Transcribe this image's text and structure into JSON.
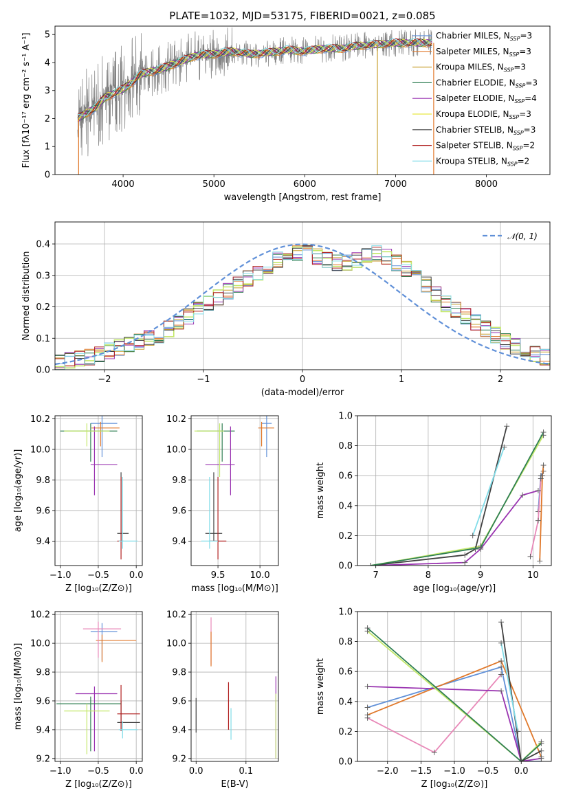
{
  "figure": {
    "title": "PLATE=1032, MJD=53175, FIBERID=0021, z=0.085"
  },
  "chart_data": [
    {
      "type": "line",
      "id": "spectrum",
      "title": "PLATE=1032, MJD=53175, FIBERID=0021, z=0.085",
      "xlabel": "wavelength [Angstrom, rest frame]",
      "ylabel": "Flux [fλ10⁻¹⁷ erg cm⁻² s⁻¹ A⁻¹]",
      "xlim": [
        3250,
        8700
      ],
      "ylim": [
        0,
        5.3
      ],
      "xticks": [
        4000,
        5000,
        6000,
        7000,
        8000
      ],
      "yticks": [
        0,
        1,
        2,
        3,
        4,
        5
      ],
      "grid": false,
      "legend_position": "top-right",
      "data_color": "#808080",
      "continuum": {
        "x": [
          3500,
          3600,
          3700,
          3800,
          3900,
          4000,
          4100,
          4200,
          4400,
          4600,
          4800,
          5000,
          5200,
          5400,
          5600,
          5800,
          6000,
          6200,
          6400,
          6600,
          6800,
          7000,
          7200,
          7400
        ],
        "y": [
          2.0,
          2.2,
          2.4,
          2.75,
          2.9,
          3.05,
          3.3,
          3.6,
          3.75,
          4.0,
          4.25,
          4.3,
          4.4,
          4.3,
          4.35,
          4.45,
          4.4,
          4.5,
          4.5,
          4.6,
          4.65,
          4.7,
          4.7,
          4.7
        ]
      },
      "legend": [
        {
          "label": "Chabrier MILES, N",
          "sub": "SSP",
          "suffix": "=3",
          "color": "#6090d8"
        },
        {
          "label": "Salpeter MILES, N",
          "sub": "SSP",
          "suffix": "=3",
          "color": "#e0782a"
        },
        {
          "label": "Kroupa MILES, N",
          "sub": "SSP",
          "suffix": "=3",
          "color": "#c8a030"
        },
        {
          "label": "Chabrier ELODIE, N",
          "sub": "SSP",
          "suffix": "=3",
          "color": "#2f7f52"
        },
        {
          "label": "Salpeter ELODIE, N",
          "sub": "SSP",
          "suffix": "=4",
          "color": "#9932b0"
        },
        {
          "label": "Kroupa ELODIE, N",
          "sub": "SSP",
          "suffix": "=3",
          "color": "#e8e840"
        },
        {
          "label": "Chabrier STELIB, N",
          "sub": "SSP",
          "suffix": "=3",
          "color": "#404040"
        },
        {
          "label": "Salpeter STELIB, N",
          "sub": "SSP",
          "suffix": "=2",
          "color": "#b02020"
        },
        {
          "label": "Kroupa STELIB, N",
          "sub": "SSP",
          "suffix": "=2",
          "color": "#80dce8"
        }
      ]
    },
    {
      "type": "step",
      "id": "residuals",
      "xlabel": "(data-model)/error",
      "ylabel": "Normed distribution",
      "xlim": [
        -2.5,
        2.5
      ],
      "ylim": [
        0,
        0.47
      ],
      "xticks": [
        -2,
        -1,
        0,
        1,
        2
      ],
      "yticks": [
        0.0,
        0.1,
        0.2,
        0.3,
        0.4
      ],
      "grid": true,
      "legend_position": "top-right",
      "reference_label": "𝒩(0, 1)",
      "reference_color": "#6090d8",
      "bin_edges_start": -2.5,
      "bin_width": 0.1,
      "base_hist": [
        0.025,
        0.03,
        0.035,
        0.04,
        0.05,
        0.06,
        0.07,
        0.08,
        0.09,
        0.1,
        0.11,
        0.13,
        0.15,
        0.17,
        0.19,
        0.21,
        0.23,
        0.25,
        0.27,
        0.29,
        0.31,
        0.33,
        0.35,
        0.36,
        0.37,
        0.37,
        0.36,
        0.35,
        0.34,
        0.34,
        0.35,
        0.36,
        0.37,
        0.36,
        0.34,
        0.32,
        0.3,
        0.27,
        0.24,
        0.21,
        0.19,
        0.17,
        0.15,
        0.13,
        0.11,
        0.09,
        0.075,
        0.06,
        0.05,
        0.04
      ]
    },
    {
      "type": "errorbar",
      "id": "age_vs_Z",
      "xlabel": "Z [log₁₀(Z/Z⊙)]",
      "ylabel": "age  [log₁₀(age/yr)]",
      "xlim": [
        -1.07,
        0.08
      ],
      "ylim": [
        9.24,
        10.22
      ],
      "xticks": [
        -1.0,
        -0.5,
        0.0
      ],
      "yticks": [
        9.4,
        9.6,
        9.8,
        10.0,
        10.2
      ],
      "grid": true,
      "points": [
        {
          "x": -0.45,
          "y": 10.17,
          "xerr": [
            0.15,
            0.2
          ],
          "yerr": [
            0.22,
            0.05
          ],
          "color": "#6090d8"
        },
        {
          "x": -0.47,
          "y": 10.14,
          "xerr": [
            0.12,
            0.25
          ],
          "yerr": [
            0.12,
            0.04
          ],
          "color": "#e0782a"
        },
        {
          "x": -0.6,
          "y": 10.12,
          "xerr": [
            0.4,
            0.35
          ],
          "yerr": [
            0.2,
            0.05
          ],
          "color": "#2f7f52"
        },
        {
          "x": -0.55,
          "y": 9.9,
          "xerr": [
            0.05,
            0.3
          ],
          "yerr": [
            0.2,
            0.25
          ],
          "color": "#9932b0"
        },
        {
          "x": -0.65,
          "y": 10.12,
          "xerr": [
            0.3,
            0.3
          ],
          "yerr": [
            0.1,
            0.05
          ],
          "color": "#c4e86a"
        },
        {
          "x": -0.2,
          "y": 9.45,
          "xerr": [
            0.05,
            0.1
          ],
          "yerr": [
            0.05,
            0.4
          ],
          "color": "#404040"
        },
        {
          "x": -0.2,
          "y": 9.4,
          "xerr": [
            0.05,
            0.03
          ],
          "yerr": [
            0.12,
            0.42
          ],
          "color": "#b02020"
        },
        {
          "x": -0.18,
          "y": 9.4,
          "xerr": [
            0.05,
            0.2
          ],
          "yerr": [
            0.05,
            0.42
          ],
          "color": "#80dce8"
        }
      ]
    },
    {
      "type": "errorbar",
      "id": "age_vs_mass",
      "xlabel": "mass [log₁₀(M/M⊙)]",
      "ylabel": "",
      "xlim": [
        9.18,
        10.22
      ],
      "ylim": [
        9.24,
        10.22
      ],
      "xticks": [
        9.5,
        10.0
      ],
      "yticks": [
        9.4,
        9.6,
        9.8,
        10.0,
        10.2
      ],
      "grid": true,
      "points": [
        {
          "x": 10.08,
          "y": 10.17,
          "xerr": [
            0.06,
            0.06
          ],
          "yerr": [
            0.22,
            0.05
          ],
          "color": "#6090d8"
        },
        {
          "x": 10.02,
          "y": 10.14,
          "xerr": [
            0.04,
            0.15
          ],
          "yerr": [
            0.12,
            0.04
          ],
          "color": "#e0782a"
        },
        {
          "x": 9.55,
          "y": 10.12,
          "xerr": [
            0.3,
            0.15
          ],
          "yerr": [
            0.2,
            0.05
          ],
          "color": "#2f7f52"
        },
        {
          "x": 9.65,
          "y": 9.9,
          "xerr": [
            0.3,
            0.05
          ],
          "yerr": [
            0.2,
            0.25
          ],
          "color": "#9932b0"
        },
        {
          "x": 9.52,
          "y": 10.12,
          "xerr": [
            0.3,
            0.05
          ],
          "yerr": [
            0.3,
            0.05
          ],
          "color": "#c4e86a"
        },
        {
          "x": 9.45,
          "y": 9.45,
          "xerr": [
            0.1,
            0.1
          ],
          "yerr": [
            0.05,
            0.4
          ],
          "color": "#404040"
        },
        {
          "x": 9.5,
          "y": 9.4,
          "xerr": [
            0.1,
            0.1
          ],
          "yerr": [
            0.12,
            0.42
          ],
          "color": "#b02020"
        },
        {
          "x": 9.4,
          "y": 9.4,
          "xerr": [
            0.1,
            0.1
          ],
          "yerr": [
            0.05,
            0.42
          ],
          "color": "#80dce8"
        }
      ]
    },
    {
      "type": "line",
      "id": "weight_vs_age",
      "xlabel": "age  [log₁₀(age/yr)]",
      "ylabel": "mass weight",
      "xlim": [
        6.65,
        10.35
      ],
      "ylim": [
        0,
        1.0
      ],
      "xticks": [
        7,
        8,
        9,
        10
      ],
      "yticks": [
        0.0,
        0.2,
        0.4,
        0.6,
        0.8,
        1.0
      ],
      "grid": true,
      "series": [
        {
          "color": "#6090d8",
          "x": [
            10.1,
            10.15,
            10.2
          ],
          "y": [
            0.36,
            0.6,
            0.63
          ]
        },
        {
          "color": "#e0782a",
          "x": [
            10.13,
            10.18,
            10.2
          ],
          "y": [
            0.03,
            0.6,
            0.67
          ]
        },
        {
          "color": "#e888b8",
          "x": [
            9.95,
            10.1,
            10.15
          ],
          "y": [
            0.06,
            0.3,
            0.58
          ]
        },
        {
          "color": "#9932b0",
          "x": [
            6.9,
            8.7,
            9.0,
            9.8,
            10.1
          ],
          "y": [
            0.0,
            0.02,
            0.11,
            0.47,
            0.5
          ]
        },
        {
          "color": "#c4e86a",
          "x": [
            6.9,
            9.0,
            10.2
          ],
          "y": [
            0.0,
            0.13,
            0.87
          ]
        },
        {
          "color": "#404040",
          "x": [
            6.9,
            8.7,
            8.9,
            9.5
          ],
          "y": [
            0.0,
            0.07,
            0.11,
            0.93
          ]
        },
        {
          "color": "#2f7f52",
          "x": [
            6.9,
            9.0,
            10.2
          ],
          "y": [
            0.0,
            0.12,
            0.89
          ]
        },
        {
          "color": "#80dce8",
          "x": [
            8.85,
            9.45
          ],
          "y": [
            0.2,
            0.79
          ]
        }
      ]
    },
    {
      "type": "errorbar",
      "id": "mass_vs_Z",
      "xlabel": "Z [log₁₀(Z/Z⊙)]",
      "ylabel": "mass [log₁₀(M/M⊙)]",
      "xlim": [
        -1.07,
        0.08
      ],
      "ylim": [
        9.18,
        10.22
      ],
      "xticks": [
        -1.0,
        -0.5,
        0.0
      ],
      "yticks": [
        9.2,
        9.4,
        9.6,
        9.8,
        10.0,
        10.2
      ],
      "grid": true,
      "points": [
        {
          "x": -0.45,
          "y": 10.08,
          "xerr": [
            0.15,
            0.2
          ],
          "yerr": [
            0.2,
            0.06
          ],
          "color": "#6090d8"
        },
        {
          "x": -0.45,
          "y": 10.02,
          "xerr": [
            0.08,
            0.45
          ],
          "yerr": [
            0.15,
            0.04
          ],
          "color": "#e0782a"
        },
        {
          "x": -0.5,
          "y": 10.1,
          "xerr": [
            0.2,
            0.3
          ],
          "yerr": [
            0.2,
            0.05
          ],
          "color": "#e888b8"
        },
        {
          "x": -0.55,
          "y": 9.65,
          "xerr": [
            0.25,
            0.3
          ],
          "yerr": [
            0.4,
            0.05
          ],
          "color": "#9932b0"
        },
        {
          "x": -0.6,
          "y": 9.58,
          "xerr": [
            0.45,
            0.4
          ],
          "yerr": [
            0.33,
            0.05
          ],
          "color": "#2f7f52"
        },
        {
          "x": -0.65,
          "y": 9.53,
          "xerr": [
            0.3,
            0.3
          ],
          "yerr": [
            0.3,
            0.05
          ],
          "color": "#c4e86a"
        },
        {
          "x": -0.2,
          "y": 9.45,
          "xerr": [
            0.05,
            0.25
          ],
          "yerr": [
            0.05,
            0.15
          ],
          "color": "#404040"
        },
        {
          "x": -0.2,
          "y": 9.51,
          "xerr": [
            0.05,
            0.25
          ],
          "yerr": [
            0.12,
            0.2
          ],
          "color": "#b02020"
        },
        {
          "x": -0.18,
          "y": 9.4,
          "xerr": [
            0.05,
            0.2
          ],
          "yerr": [
            0.06,
            0.06
          ],
          "color": "#80dce8"
        }
      ]
    },
    {
      "type": "errorbar",
      "id": "mass_vs_EBV",
      "xlabel": "E(B-V)",
      "ylabel": "",
      "xlim": [
        -0.01,
        0.165
      ],
      "ylim": [
        9.18,
        10.22
      ],
      "xticks": [
        0.0,
        0.1
      ],
      "yticks": [
        9.2,
        9.4,
        9.6,
        9.8,
        10.0,
        10.2
      ],
      "grid": true,
      "points": [
        {
          "x": 0.03,
          "y": 10.1,
          "xerr": [
            0,
            0
          ],
          "yerr": [
            0.25,
            0.08
          ],
          "color": "#e888b8"
        },
        {
          "x": 0.03,
          "y": 10.02,
          "xerr": [
            0,
            0
          ],
          "yerr": [
            0.18,
            0.06
          ],
          "color": "#e0782a"
        },
        {
          "x": 0.0,
          "y": 9.5,
          "xerr": [
            0,
            0
          ],
          "yerr": [
            0.12,
            0.12
          ],
          "color": "#404040"
        },
        {
          "x": 0.065,
          "y": 9.55,
          "xerr": [
            0,
            0
          ],
          "yerr": [
            0.15,
            0.18
          ],
          "color": "#b02020"
        },
        {
          "x": 0.07,
          "y": 9.45,
          "xerr": [
            0,
            0
          ],
          "yerr": [
            0.12,
            0.1
          ],
          "color": "#80dce8"
        },
        {
          "x": 0.16,
          "y": 9.6,
          "xerr": [
            0,
            0
          ],
          "yerr": [
            0.4,
            0.17
          ],
          "color": "#9932b0"
        },
        {
          "x": 0.16,
          "y": 9.45,
          "xerr": [
            0,
            0
          ],
          "yerr": [
            0.25,
            0.2
          ],
          "color": "#c4e86a"
        }
      ]
    },
    {
      "type": "line",
      "id": "weight_vs_Z",
      "xlabel": "Z [log₁₀(Z/Z⊙)]",
      "ylabel": "mass weight",
      "xlim": [
        -2.45,
        0.45
      ],
      "ylim": [
        0,
        1.0
      ],
      "xticks": [
        -2.0,
        -1.5,
        -1.0,
        -0.5,
        0.0
      ],
      "yticks": [
        0.0,
        0.2,
        0.4,
        0.6,
        0.8,
        1.0
      ],
      "grid": true,
      "series": [
        {
          "color": "#6090d8",
          "x": [
            -2.3,
            -0.3,
            0.0,
            0.3
          ],
          "y": [
            0.36,
            0.63,
            0.0,
            0.0
          ]
        },
        {
          "color": "#e0782a",
          "x": [
            -2.3,
            -0.3,
            0.3
          ],
          "y": [
            0.31,
            0.67,
            0.03
          ]
        },
        {
          "color": "#e888b8",
          "x": [
            -2.3,
            -1.3,
            -0.3
          ],
          "y": [
            0.29,
            0.06,
            0.58
          ]
        },
        {
          "color": "#9932b0",
          "x": [
            -2.3,
            -0.3,
            0.0,
            0.3
          ],
          "y": [
            0.5,
            0.47,
            0.0,
            0.02
          ]
        },
        {
          "color": "#c4e86a",
          "x": [
            -2.3,
            0.0,
            0.3
          ],
          "y": [
            0.87,
            0.0,
            0.13
          ]
        },
        {
          "color": "#2f7f52",
          "x": [
            -2.3,
            0.0,
            0.3
          ],
          "y": [
            0.89,
            0.0,
            0.12
          ]
        },
        {
          "color": "#404040",
          "x": [
            -0.3,
            0.0,
            0.3
          ],
          "y": [
            0.93,
            0.0,
            0.07
          ]
        },
        {
          "color": "#80dce8",
          "x": [
            -0.3,
            -0.05
          ],
          "y": [
            0.79,
            0.2
          ]
        }
      ]
    }
  ]
}
